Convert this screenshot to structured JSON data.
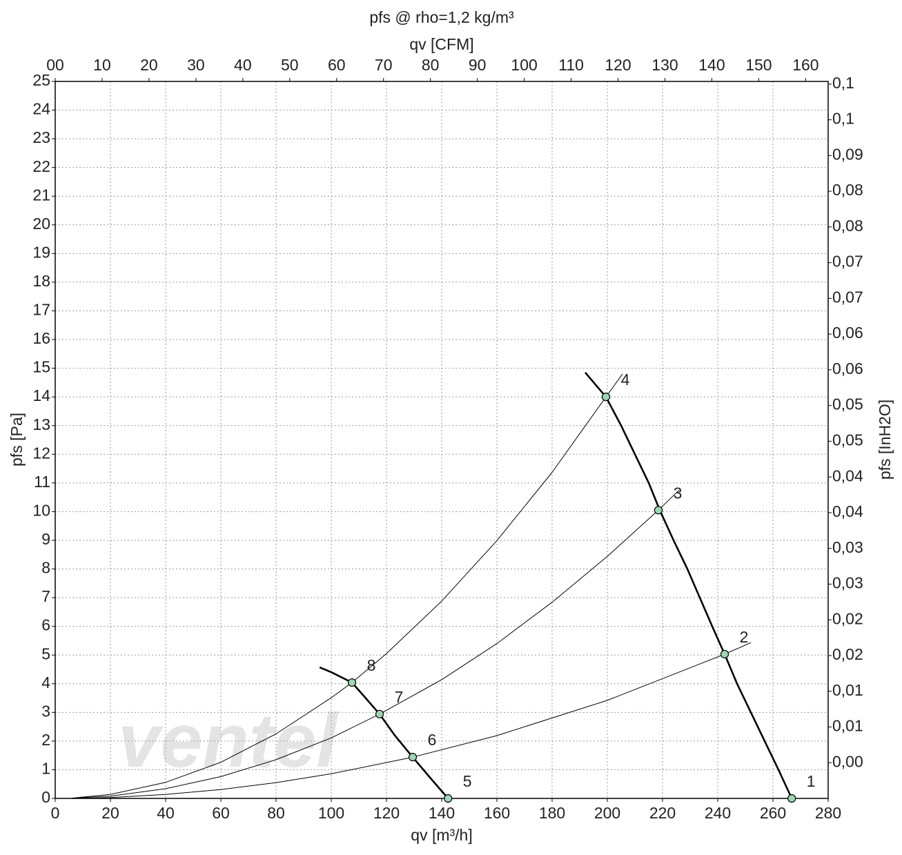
{
  "chart_data": {
    "type": "line",
    "title": "pfs @ rho=1,2 kg/m³",
    "x_label": "qv [m³/h]",
    "x2_label": "qv [CFM]",
    "y_label": "pfs [Pa]",
    "y2_label": "pfs [InH2O]",
    "logo": "ventel",
    "xlim": [
      0,
      280
    ],
    "xticks": [
      0,
      20,
      40,
      60,
      80,
      100,
      120,
      140,
      160,
      180,
      200,
      220,
      240,
      260,
      280
    ],
    "x2lim": [
      0,
      164.8
    ],
    "x2ticks": [
      {
        "value": 0,
        "label": "00"
      },
      10,
      20,
      30,
      40,
      50,
      60,
      70,
      80,
      90,
      100,
      110,
      120,
      130,
      140,
      150,
      160
    ],
    "ylim": [
      0,
      25
    ],
    "yticks": [
      0,
      1,
      2,
      3,
      4,
      5,
      6,
      7,
      8,
      9,
      10,
      11,
      12,
      13,
      14,
      15,
      16,
      17,
      18,
      19,
      20,
      21,
      22,
      23,
      24,
      25
    ],
    "y2lim": [
      0,
      0.10037
    ],
    "y2ticks": [
      {
        "value": 0.005,
        "label": "0,00"
      },
      {
        "value": 0.01,
        "label": "0,01"
      },
      {
        "value": 0.015,
        "label": "0,01"
      },
      {
        "value": 0.02,
        "label": "0,02"
      },
      {
        "value": 0.025,
        "label": "0,02"
      },
      {
        "value": 0.03,
        "label": "0,03"
      },
      {
        "value": 0.035,
        "label": "0,03"
      },
      {
        "value": 0.04,
        "label": "0,04"
      },
      {
        "value": 0.045,
        "label": "0,04"
      },
      {
        "value": 0.05,
        "label": "0,05"
      },
      {
        "value": 0.055,
        "label": "0,05"
      },
      {
        "value": 0.06,
        "label": "0,06"
      },
      {
        "value": 0.065,
        "label": "0,06"
      },
      {
        "value": 0.07,
        "label": "0,07"
      },
      {
        "value": 0.075,
        "label": "0,07"
      },
      {
        "value": 0.08,
        "label": "0,08"
      },
      {
        "value": 0.085,
        "label": "0,08"
      },
      {
        "value": 0.09,
        "label": "0,09"
      },
      {
        "value": 0.095,
        "label": "0,1"
      },
      {
        "value": 0.1,
        "label": "0,1"
      }
    ],
    "grid": true,
    "fan_curves": [
      {
        "x": [
          192,
          199.5,
          205,
          210,
          215,
          219,
          224,
          229,
          233.5,
          238,
          242.5,
          247,
          252,
          257,
          262,
          266.8
        ],
        "values": [
          14.85,
          14,
          13,
          12,
          11,
          10.05,
          9,
          8,
          7,
          6,
          5.03,
          4,
          3,
          2,
          1,
          0
        ]
      },
      {
        "x": [
          95.8,
          100,
          107.5,
          112,
          117.5,
          123,
          129.5,
          136,
          142.3
        ],
        "values": [
          4.57,
          4.4,
          4.04,
          3.55,
          2.94,
          2.2,
          1.44,
          0.7,
          0
        ]
      }
    ],
    "system_curves": [
      {
        "x": [
          6,
          20,
          40,
          60,
          80,
          100,
          107.5,
          120,
          140,
          160,
          180,
          199.5,
          205.5
        ],
        "values": [
          0.01,
          0.14,
          0.56,
          1.26,
          2.25,
          3.51,
          4.04,
          5.05,
          6.88,
          8.99,
          11.37,
          14,
          14.8
        ]
      },
      {
        "x": [
          6,
          20,
          40,
          60,
          80,
          100,
          117.5,
          140,
          160,
          180,
          200,
          218.5,
          226
        ],
        "values": [
          0.01,
          0.08,
          0.34,
          0.76,
          1.35,
          2.11,
          2.94,
          4.14,
          5.4,
          6.84,
          8.44,
          10.05,
          10.75
        ]
      },
      {
        "x": [
          6,
          20,
          40,
          60,
          80,
          100,
          129.5,
          160,
          200,
          242.5,
          252
        ],
        "values": [
          0,
          0.03,
          0.14,
          0.31,
          0.55,
          0.86,
          1.44,
          2.19,
          3.42,
          5.03,
          5.43
        ]
      }
    ],
    "points": [
      {
        "label": "1",
        "x": 266.8,
        "y": 0
      },
      {
        "label": "2",
        "x": 242.5,
        "y": 5.03
      },
      {
        "label": "3",
        "x": 218.5,
        "y": 10.05
      },
      {
        "label": "4",
        "x": 199.5,
        "y": 14
      },
      {
        "label": "5",
        "x": 142.3,
        "y": 0
      },
      {
        "label": "6",
        "x": 129.5,
        "y": 1.44
      },
      {
        "label": "7",
        "x": 117.5,
        "y": 2.94
      },
      {
        "label": "8",
        "x": 107.5,
        "y": 4.04
      }
    ],
    "point_color": "#9fd6b4"
  }
}
